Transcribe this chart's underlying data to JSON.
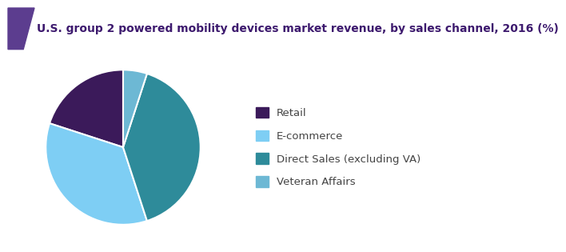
{
  "title": "U.S. group 2 powered mobility devices market revenue, by sales channel, 2016 (%)",
  "title_color": "#3d1a6e",
  "title_fontsize": 10.0,
  "background_color": "#ffffff",
  "labels": [
    "Retail",
    "E-commerce",
    "Direct Sales (excluding VA)",
    "Veteran Affairs"
  ],
  "values": [
    20,
    35,
    40,
    5
  ],
  "colors": [
    "#3b1a5a",
    "#7ecef4",
    "#2e8b9a",
    "#6db8d4"
  ],
  "legend_fontsize": 9.5,
  "startangle": 90,
  "header_bg": "#f0eef6",
  "header_line_color": "#7b5ea7",
  "accent_color": "#5c3d8f"
}
